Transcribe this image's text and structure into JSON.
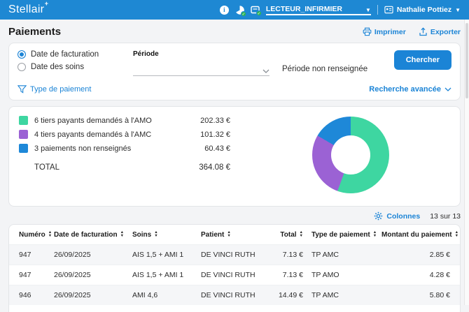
{
  "colors": {
    "header": "#1e88d3",
    "accent": "#1b84d6",
    "green": "#3ed6a1",
    "purple": "#9b62d4",
    "blue": "#1e88d8"
  },
  "header": {
    "brand": "Stellair",
    "reader_label": "LECTEUR_INFIRMIER",
    "user_name": "Nathalie Pottiez"
  },
  "page": {
    "title": "Paiements",
    "print_label": "Imprimer",
    "export_label": "Exporter"
  },
  "filters": {
    "radios": [
      {
        "label": "Date de facturation",
        "selected": true
      },
      {
        "label": "Date des soins",
        "selected": false
      }
    ],
    "periode_label": "Période",
    "periode_value": "",
    "periode_empty_text": "Période non renseignée",
    "type_paiement_label": "Type de paiement",
    "search_button": "Chercher",
    "advanced_label": "Recherche avancée"
  },
  "summary": {
    "items": [
      {
        "label": "6 tiers payants demandés à l'AMO",
        "amount": "202.33 €",
        "color": "#3ed6a1"
      },
      {
        "label": "4 tiers payants demandés à l'AMC",
        "amount": "101.32 €",
        "color": "#9b62d4"
      },
      {
        "label": "3 paiements non renseignés",
        "amount": "60.43 €",
        "color": "#1e88d8"
      }
    ],
    "total_label": "TOTAL",
    "total_amount": "364.08 €"
  },
  "chart_data": {
    "type": "pie",
    "donut": true,
    "labels": [
      "6 tiers payants demandés à l'AMO",
      "4 tiers payants demandés à l'AMC",
      "3 paiements non renseignés"
    ],
    "values": [
      202.33,
      101.32,
      60.43
    ],
    "colors": [
      "#3ed6a1",
      "#9b62d4",
      "#1e88d8"
    ],
    "total": 364.08,
    "unit": "€",
    "start_angle_deg": 0,
    "direction": "clockwise",
    "legend_position": "left"
  },
  "table": {
    "columns_label": "Colonnes",
    "count_text": "13 sur 13",
    "headers": [
      "Numéro",
      "Date de facturation",
      "Soins",
      "Patient",
      "Total",
      "Type de paiement",
      "Montant du paiement"
    ],
    "right_aligned_columns": [
      4,
      6
    ],
    "rows": [
      [
        "947",
        "26/09/2025",
        "AIS 1,5 + AMI 1",
        "DE VINCI RUTH",
        "7.13 €",
        "TP AMC",
        "2.85 €"
      ],
      [
        "947",
        "26/09/2025",
        "AIS 1,5 + AMI 1",
        "DE VINCI RUTH",
        "7.13 €",
        "TP AMO",
        "4.28 €"
      ],
      [
        "946",
        "26/09/2025",
        "AMI 4,6",
        "DE VINCI RUTH",
        "14.49 €",
        "TP AMC",
        "5.80 €"
      ]
    ]
  }
}
